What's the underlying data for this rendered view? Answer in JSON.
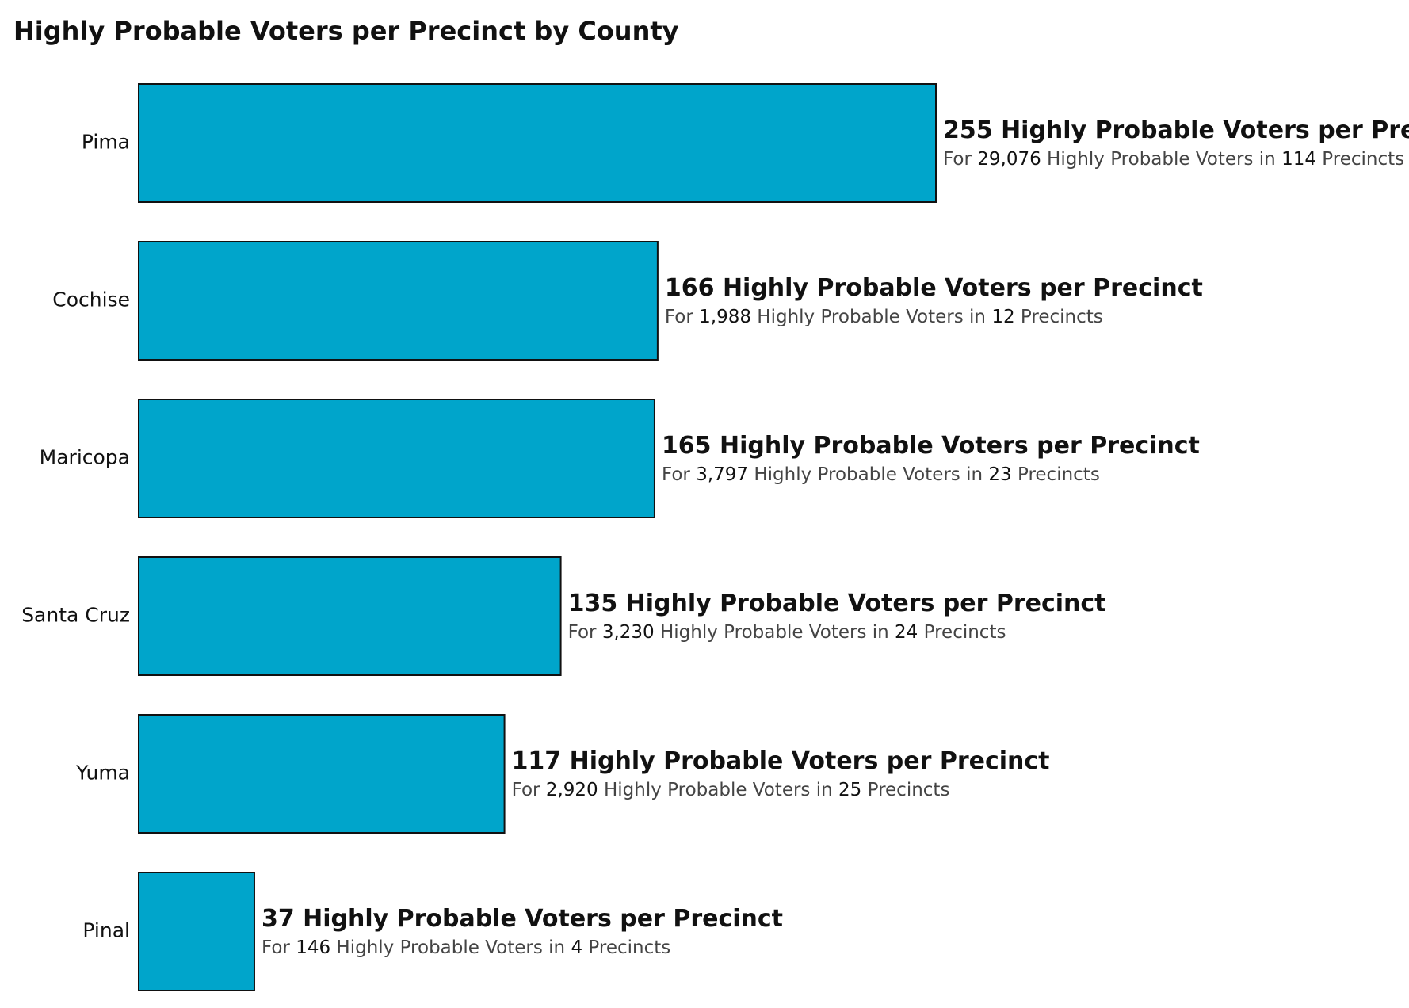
{
  "chart_data": {
    "type": "bar",
    "orientation": "horizontal",
    "title": "Highly Probable Voters per Precinct by County",
    "xlabel": "",
    "ylabel": "",
    "xlim": [
      0,
      255
    ],
    "grid": false,
    "legend": "none",
    "bar_color": "#00A5CB",
    "bar_outline_color": "#111111",
    "label_template": {
      "main_suffix": "Highly Probable Voters per Precinct",
      "sub_prefix": "For",
      "sub_middle": "Highly Probable Voters in",
      "sub_suffix": "Precincts"
    },
    "categories": [
      "Pima",
      "Cochise",
      "Maricopa",
      "Santa Cruz",
      "Yuma",
      "Pinal"
    ],
    "values": [
      255,
      166,
      165,
      135,
      117,
      37
    ],
    "total_voters": [
      "29,076",
      "1,988",
      "3,797",
      "3,230",
      "2,920",
      "146"
    ],
    "precincts": [
      114,
      12,
      23,
      24,
      25,
      4
    ]
  }
}
